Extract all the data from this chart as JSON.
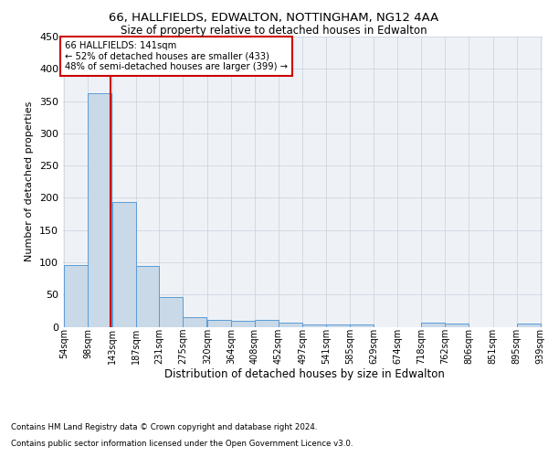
{
  "title1": "66, HALLFIELDS, EDWALTON, NOTTINGHAM, NG12 4AA",
  "title2": "Size of property relative to detached houses in Edwalton",
  "xlabel": "Distribution of detached houses by size in Edwalton",
  "ylabel": "Number of detached properties",
  "footer1": "Contains HM Land Registry data © Crown copyright and database right 2024.",
  "footer2": "Contains public sector information licensed under the Open Government Licence v3.0.",
  "annotation_line1": "66 HALLFIELDS: 141sqm",
  "annotation_line2": "← 52% of detached houses are smaller (433)",
  "annotation_line3": "48% of semi-detached houses are larger (399) →",
  "property_size": 141,
  "bin_edges": [
    54,
    98,
    143,
    187,
    231,
    275,
    320,
    364,
    408,
    452,
    497,
    541,
    585,
    629,
    674,
    718,
    762,
    806,
    851,
    895,
    939
  ],
  "bar_values": [
    96,
    362,
    194,
    94,
    46,
    15,
    10,
    9,
    10,
    6,
    4,
    3,
    3,
    0,
    0,
    6,
    5,
    0,
    0,
    5
  ],
  "bar_color": "#c9d9e8",
  "bar_edge_color": "#5b9bd5",
  "vline_color": "#cc0000",
  "annotation_box_color": "#cc0000",
  "background_color": "#eef2f7",
  "grid_color": "#c8d0dc",
  "ylim": [
    0,
    450
  ],
  "yticks": [
    0,
    50,
    100,
    150,
    200,
    250,
    300,
    350,
    400,
    450
  ]
}
